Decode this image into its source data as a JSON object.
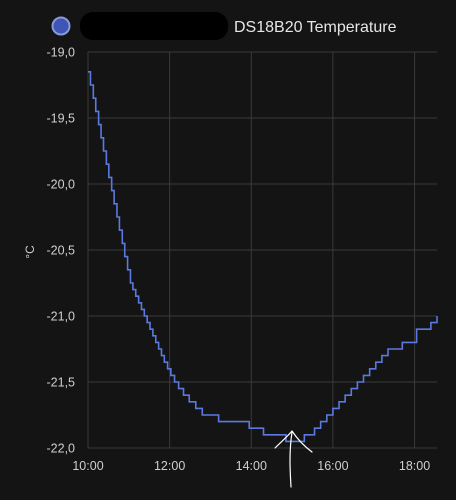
{
  "legend": {
    "label": "DS18B20 Temperature",
    "color": "#5b79e0"
  },
  "chart_data": {
    "type": "line",
    "step": true,
    "ylabel": "°C",
    "xlim": [
      10.0,
      18.55
    ],
    "ylim": [
      -22.0,
      -19.0
    ],
    "x_ticks": [
      10,
      12,
      14,
      16,
      18
    ],
    "x_tick_labels": [
      "10:00",
      "12:00",
      "14:00",
      "16:00",
      "18:00"
    ],
    "y_ticks": [
      -19.0,
      -19.5,
      -20.0,
      -20.5,
      -21.0,
      -21.5,
      -22.0
    ],
    "y_tick_labels": [
      "-19,0",
      "-19,5",
      "-20,0",
      "-20,5",
      "-21,0",
      "-21,5",
      "-22,0"
    ],
    "grid": true,
    "series": [
      {
        "color": "#5b79e0",
        "x": [
          10.0,
          10.06,
          10.13,
          10.19,
          10.26,
          10.32,
          10.38,
          10.45,
          10.51,
          10.58,
          10.64,
          10.71,
          10.77,
          10.84,
          10.9,
          10.97,
          11.04,
          11.1,
          11.17,
          11.24,
          11.31,
          11.38,
          11.45,
          11.52,
          11.59,
          11.66,
          11.73,
          11.8,
          11.87,
          11.95,
          12.03,
          12.12,
          12.22,
          12.34,
          12.48,
          12.64,
          12.8,
          13.2,
          13.95,
          14.3,
          14.85,
          15.3,
          15.55,
          15.7,
          15.85,
          16.0,
          16.15,
          16.3,
          16.45,
          16.6,
          16.75,
          16.9,
          17.05,
          17.2,
          17.35,
          17.7,
          18.05,
          18.4,
          18.55
        ],
        "y": [
          -19.15,
          -19.25,
          -19.35,
          -19.45,
          -19.55,
          -19.65,
          -19.75,
          -19.85,
          -19.95,
          -20.05,
          -20.15,
          -20.25,
          -20.35,
          -20.45,
          -20.55,
          -20.65,
          -20.75,
          -20.8,
          -20.85,
          -20.9,
          -20.95,
          -21.0,
          -21.05,
          -21.1,
          -21.15,
          -21.2,
          -21.25,
          -21.3,
          -21.35,
          -21.4,
          -21.45,
          -21.5,
          -21.55,
          -21.6,
          -21.65,
          -21.7,
          -21.75,
          -21.8,
          -21.85,
          -21.9,
          -21.95,
          -21.9,
          -21.85,
          -21.8,
          -21.75,
          -21.7,
          -21.65,
          -21.6,
          -21.55,
          -21.5,
          -21.45,
          -21.4,
          -21.35,
          -21.3,
          -21.25,
          -21.2,
          -21.1,
          -21.05,
          -21.0
        ]
      }
    ]
  }
}
